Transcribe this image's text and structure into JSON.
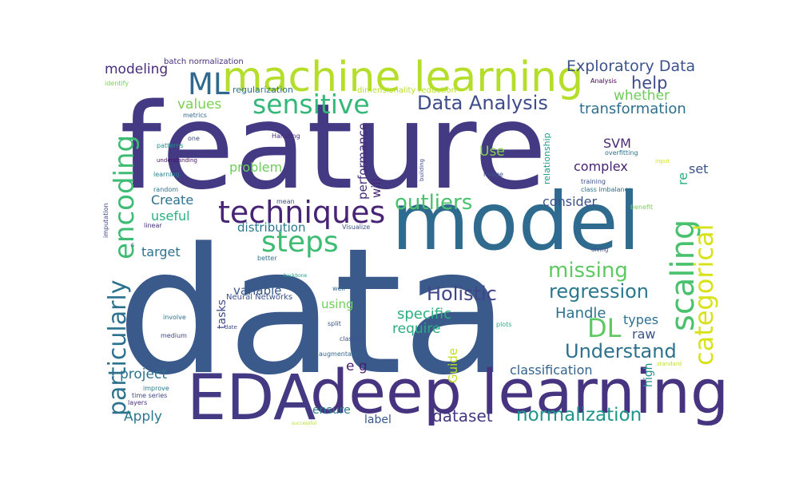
{
  "words": [
    {
      "text": "data",
      "color": "#3b5a8c"
    },
    {
      "text": "feature",
      "color": "#433a83"
    },
    {
      "text": "model",
      "color": "#2f6b8e"
    },
    {
      "text": "deep learning",
      "color": "#463480"
    },
    {
      "text": "EDA",
      "color": "#433a83"
    },
    {
      "text": "machine learning",
      "color": "#b5de2b"
    },
    {
      "text": "techniques",
      "color": "#482475"
    },
    {
      "text": "sensitive",
      "color": "#35b779"
    },
    {
      "text": "encoding",
      "color": "#3fbc73"
    },
    {
      "text": "scaling",
      "color": "#4ac16d"
    },
    {
      "text": "categorical",
      "color": "#d8e219"
    },
    {
      "text": "steps",
      "color": "#3fbc73"
    },
    {
      "text": "ML",
      "color": "#31688e"
    },
    {
      "text": "Data Analysis",
      "color": "#3e4c8a"
    },
    {
      "text": "outliers",
      "color": "#4ac16d"
    },
    {
      "text": "normalization",
      "color": "#1f968b"
    },
    {
      "text": "regression",
      "color": "#2a788e"
    },
    {
      "text": "Understand",
      "color": "#2c728e"
    },
    {
      "text": "Holistic",
      "color": "#414487"
    },
    {
      "text": "DL",
      "color": "#5ec962"
    },
    {
      "text": "particularly",
      "color": "#2c728e"
    },
    {
      "text": "missing",
      "color": "#5ec962"
    },
    {
      "text": "Exploratory Data",
      "color": "#3b528b"
    },
    {
      "text": "help",
      "color": "#3e4c8a"
    },
    {
      "text": "transformation",
      "color": "#2d708e"
    },
    {
      "text": "dataset",
      "color": "#443983"
    },
    {
      "text": "values",
      "color": "#7ad151"
    },
    {
      "text": "whether",
      "color": "#6ccd5a"
    },
    {
      "text": "Apply",
      "color": "#2a788e"
    },
    {
      "text": "project",
      "color": "#2c728e"
    },
    {
      "text": "modeling",
      "color": "#472d7b"
    },
    {
      "text": "classification",
      "color": "#33638d"
    },
    {
      "text": "Handle",
      "color": "#2c728e"
    },
    {
      "text": "specific",
      "color": "#2ab07f"
    },
    {
      "text": "require",
      "color": "#27ad81"
    },
    {
      "text": "Guide",
      "color": "#c2df23"
    },
    {
      "text": "performance",
      "color": "#472d7b"
    },
    {
      "text": "Create",
      "color": "#2d708e"
    },
    {
      "text": "consider",
      "color": "#3b528b"
    },
    {
      "text": "useful",
      "color": "#2ab07f"
    },
    {
      "text": "will",
      "color": "#482576"
    },
    {
      "text": "problem",
      "color": "#6ccd5a"
    },
    {
      "text": "complex",
      "color": "#482173"
    },
    {
      "text": "SVM",
      "color": "#482878"
    },
    {
      "text": "Use",
      "color": "#84d44b"
    },
    {
      "text": "set",
      "color": "#3b528b"
    },
    {
      "text": "re",
      "color": "#2ab07f"
    },
    {
      "text": "types",
      "color": "#2d708e"
    },
    {
      "text": "raw",
      "color": "#3b528b"
    },
    {
      "text": "target",
      "color": "#2c728e"
    },
    {
      "text": "distribution",
      "color": "#2a788e"
    },
    {
      "text": "variable",
      "color": "#39568c"
    },
    {
      "text": "using",
      "color": "#6ece58"
    },
    {
      "text": "tasks",
      "color": "#3e4989"
    },
    {
      "text": "e g",
      "color": "#481f70"
    },
    {
      "text": "ensure",
      "color": "#2a788e"
    },
    {
      "text": "label",
      "color": "#38588c"
    },
    {
      "text": "high",
      "color": "#21918c"
    },
    {
      "text": "relationship",
      "color": "#1f9e89"
    },
    {
      "text": "Neural Networks",
      "color": "#3b528b"
    },
    {
      "text": "batch normalization",
      "color": "#472d7b"
    },
    {
      "text": "regularization",
      "color": "#2c728e"
    },
    {
      "text": "dimensionality reduction",
      "color": "#b5de2b"
    },
    {
      "text": "Analysis",
      "color": "#440154"
    },
    {
      "text": "metrics",
      "color": "#31688e"
    },
    {
      "text": "Handling",
      "color": "#472d7b"
    },
    {
      "text": "identify",
      "color": "#7ad151"
    },
    {
      "text": "one",
      "color": "#3e4989"
    },
    {
      "text": "patterns",
      "color": "#21918c"
    },
    {
      "text": "understanding",
      "color": "#470e61"
    },
    {
      "text": "learning",
      "color": "#26828e"
    },
    {
      "text": "random",
      "color": "#2d708e"
    },
    {
      "text": "imputation",
      "color": "#3e4989"
    },
    {
      "text": "linear",
      "color": "#472d7b"
    },
    {
      "text": "mean",
      "color": "#3e4989"
    },
    {
      "text": "Visualize",
      "color": "#3b528b"
    },
    {
      "text": "better",
      "color": "#2d708e"
    },
    {
      "text": "backbone",
      "color": "#1f9e89"
    },
    {
      "text": "well",
      "color": "#31688e"
    },
    {
      "text": "involve",
      "color": "#2c728e"
    },
    {
      "text": "date",
      "color": "#3e4989"
    },
    {
      "text": "split",
      "color": "#3b528b"
    },
    {
      "text": "medium",
      "color": "#414487"
    },
    {
      "text": "classes",
      "color": "#3b528b"
    },
    {
      "text": "augmentation",
      "color": "#31688e"
    },
    {
      "text": "improve",
      "color": "#2a788e"
    },
    {
      "text": "time series",
      "color": "#414487"
    },
    {
      "text": "layers",
      "color": "#472d7b"
    },
    {
      "text": "plots",
      "color": "#2ab07f"
    },
    {
      "text": "successful",
      "color": "#b5de2b"
    },
    {
      "text": "building",
      "color": "#3e4989"
    },
    {
      "text": "image",
      "color": "#3b528b"
    },
    {
      "text": "overfitting",
      "color": "#2c728e"
    },
    {
      "text": "training",
      "color": "#3b528b"
    },
    {
      "text": "class imbalance",
      "color": "#2d708e"
    },
    {
      "text": "input",
      "color": "#d8e219"
    },
    {
      "text": "benefit",
      "color": "#7ad151"
    },
    {
      "text": "diving",
      "color": "#3e4989"
    },
    {
      "text": "standard",
      "color": "#bddf26"
    },
    {
      "text": "s",
      "color": "#3b528b"
    }
  ]
}
